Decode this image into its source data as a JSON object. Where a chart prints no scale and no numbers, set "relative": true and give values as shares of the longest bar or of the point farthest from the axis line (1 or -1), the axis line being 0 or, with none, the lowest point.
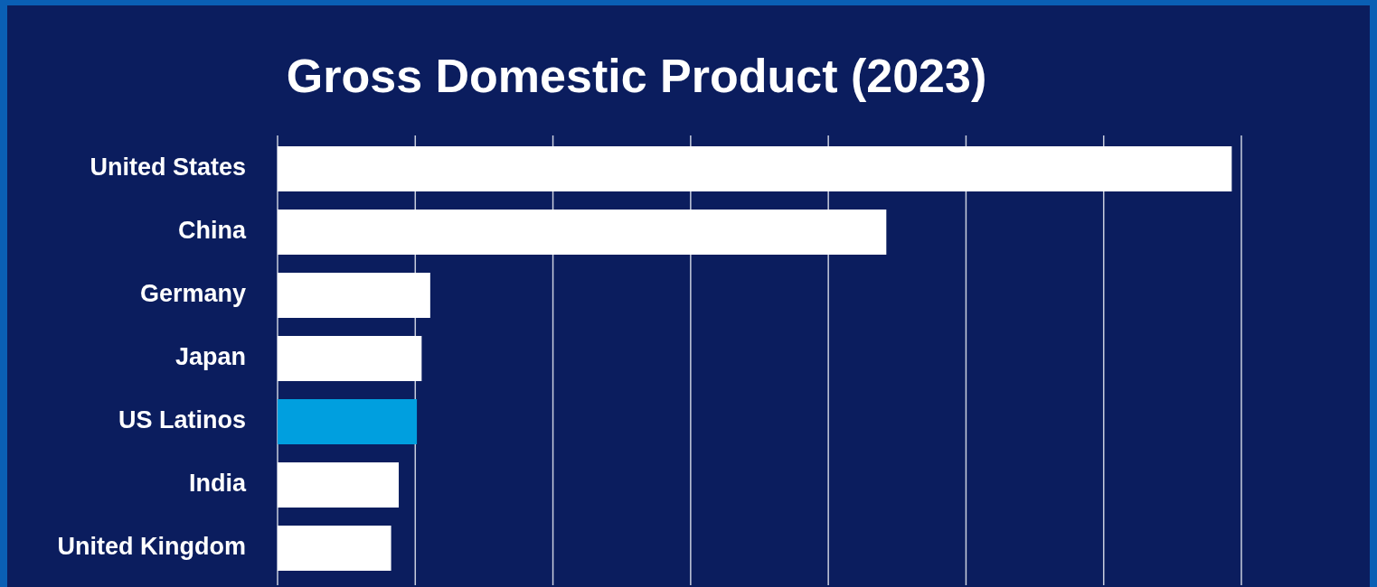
{
  "chart_data": {
    "type": "bar",
    "title": "Gross Domestic Product (2023)",
    "orientation": "horizontal",
    "relative": true,
    "categories": [
      "United States",
      "China",
      "Germany",
      "Japan",
      "US Latinos",
      "India",
      "United Kingdom"
    ],
    "values": [
      1,
      0.638,
      0.16,
      0.151,
      0.146,
      0.127,
      0.119
    ],
    "colors": [
      "#ffffff",
      "#ffffff",
      "#ffffff",
      "#ffffff",
      "#009fdf",
      "#ffffff",
      "#ffffff"
    ],
    "grid": "x",
    "tick_labels": "y"
  }
}
